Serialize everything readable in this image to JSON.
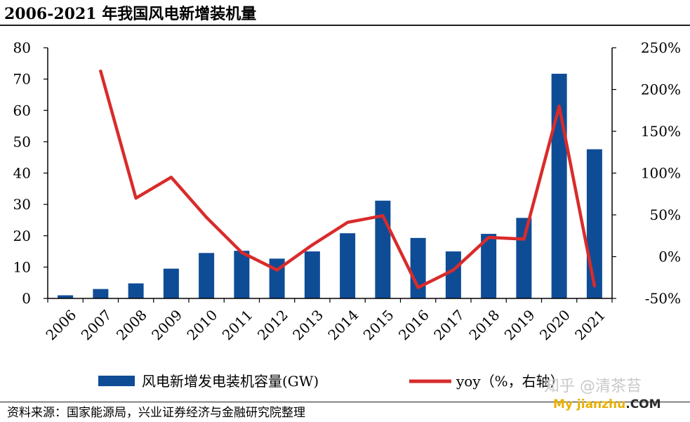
{
  "title": "2006-2021 年我国风电新增装机量",
  "source": "资料来源：国家能源局，兴业证券经济与金融研究院整理",
  "watermark": {
    "line1": "知乎 @清茶苔",
    "line2_a": "My jianzhu",
    "line2_b": ".COM"
  },
  "chart_data": {
    "type": "bar",
    "categories": [
      "2006",
      "2007",
      "2008",
      "2009",
      "2010",
      "2011",
      "2012",
      "2013",
      "2014",
      "2015",
      "2016",
      "2017",
      "2018",
      "2019",
      "2020",
      "2021"
    ],
    "series": [
      {
        "name": "风电新增发电装机容量(GW)",
        "type": "bar",
        "axis": "left",
        "color": "#0f4c96",
        "values": [
          1.0,
          3.0,
          4.8,
          9.5,
          14.5,
          15.2,
          12.7,
          15.0,
          20.8,
          31.2,
          19.3,
          15.0,
          20.6,
          25.7,
          71.7,
          47.6
        ]
      },
      {
        "name": "yoy（%，右轴）",
        "type": "line",
        "axis": "right",
        "color": "#d92b2b",
        "values": [
          null,
          222,
          70,
          95,
          47,
          5,
          -16,
          14,
          41,
          49,
          -37,
          -16,
          23,
          21,
          180,
          -35
        ]
      }
    ],
    "y_left": {
      "min": 0,
      "max": 80,
      "ticks": [
        "0",
        "10",
        "20",
        "30",
        "40",
        "50",
        "60",
        "70",
        "80"
      ]
    },
    "y_right": {
      "min": -50,
      "max": 250,
      "ticks": [
        "-50%",
        "0%",
        "50%",
        "100%",
        "150%",
        "200%",
        "250%"
      ]
    },
    "grid": false,
    "legend_position": "bottom"
  }
}
